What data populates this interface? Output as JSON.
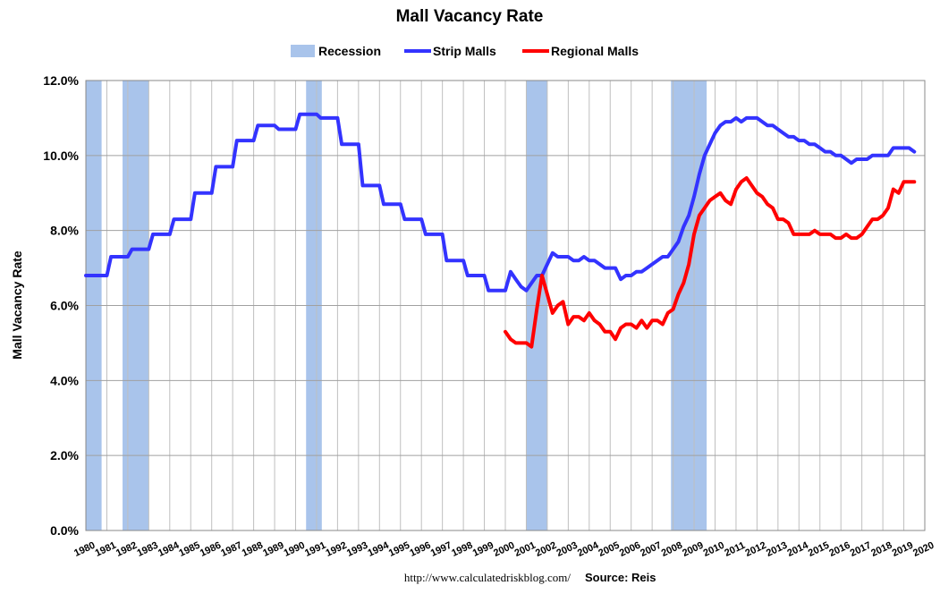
{
  "chart_data": {
    "type": "line",
    "title": "Mall Vacancy Rate",
    "ylabel": "Mall Vacancy Rate",
    "xlabel": "",
    "ylim": [
      0,
      12
    ],
    "yticks": [
      "0.0%",
      "2.0%",
      "4.0%",
      "6.0%",
      "8.0%",
      "10.0%",
      "12.0%"
    ],
    "xlim": [
      1980,
      2020
    ],
    "xticks": [
      "1980",
      "1981",
      "1982",
      "1983",
      "1984",
      "1985",
      "1986",
      "1987",
      "1988",
      "1989",
      "1990",
      "1991",
      "1992",
      "1993",
      "1994",
      "1995",
      "1996",
      "1997",
      "1998",
      "1999",
      "2000",
      "2001",
      "2002",
      "2003",
      "2004",
      "2005",
      "2006",
      "2007",
      "2008",
      "2009",
      "2010",
      "2011",
      "2012",
      "2013",
      "2014",
      "2015",
      "2016",
      "2017",
      "2018",
      "2019",
      "2020"
    ],
    "grid": "horizontal and vertical",
    "legend_position": "top-center",
    "recession": {
      "name": "Recession",
      "color": "#a9c4eb",
      "periods": [
        [
          1980.0,
          1980.75
        ],
        [
          1981.75,
          1983.0
        ],
        [
          1990.5,
          1991.25
        ],
        [
          2001.0,
          2002.0
        ],
        [
          2007.9,
          2009.6
        ]
      ]
    },
    "series": [
      {
        "name": "Strip Malls",
        "color": "#3333ff",
        "points": [
          [
            1980.0,
            6.8
          ],
          [
            1981.0,
            6.8
          ],
          [
            1981.2,
            7.3
          ],
          [
            1982.0,
            7.3
          ],
          [
            1982.2,
            7.5
          ],
          [
            1983.0,
            7.5
          ],
          [
            1983.2,
            7.9
          ],
          [
            1984.0,
            7.9
          ],
          [
            1984.2,
            8.3
          ],
          [
            1985.0,
            8.3
          ],
          [
            1985.2,
            9.0
          ],
          [
            1986.0,
            9.0
          ],
          [
            1986.2,
            9.7
          ],
          [
            1987.0,
            9.7
          ],
          [
            1987.2,
            10.4
          ],
          [
            1988.0,
            10.4
          ],
          [
            1988.2,
            10.8
          ],
          [
            1989.0,
            10.8
          ],
          [
            1989.2,
            10.7
          ],
          [
            1990.0,
            10.7
          ],
          [
            1990.2,
            11.1
          ],
          [
            1991.0,
            11.1
          ],
          [
            1991.2,
            11.0
          ],
          [
            1992.0,
            11.0
          ],
          [
            1992.2,
            10.3
          ],
          [
            1993.0,
            10.3
          ],
          [
            1993.2,
            9.2
          ],
          [
            1994.0,
            9.2
          ],
          [
            1994.2,
            8.7
          ],
          [
            1995.0,
            8.7
          ],
          [
            1995.2,
            8.3
          ],
          [
            1996.0,
            8.3
          ],
          [
            1996.2,
            7.9
          ],
          [
            1997.0,
            7.9
          ],
          [
            1997.2,
            7.2
          ],
          [
            1998.0,
            7.2
          ],
          [
            1998.2,
            6.8
          ],
          [
            1999.0,
            6.8
          ],
          [
            1999.2,
            6.4
          ],
          [
            2000.0,
            6.4
          ],
          [
            2000.25,
            6.9
          ],
          [
            2000.5,
            6.7
          ],
          [
            2000.75,
            6.5
          ],
          [
            2001.0,
            6.4
          ],
          [
            2001.25,
            6.6
          ],
          [
            2001.5,
            6.8
          ],
          [
            2001.75,
            6.8
          ],
          [
            2002.0,
            7.1
          ],
          [
            2002.25,
            7.4
          ],
          [
            2002.5,
            7.3
          ],
          [
            2002.75,
            7.3
          ],
          [
            2003.0,
            7.3
          ],
          [
            2003.25,
            7.2
          ],
          [
            2003.5,
            7.2
          ],
          [
            2003.75,
            7.3
          ],
          [
            2004.0,
            7.2
          ],
          [
            2004.25,
            7.2
          ],
          [
            2004.5,
            7.1
          ],
          [
            2004.75,
            7.0
          ],
          [
            2005.0,
            7.0
          ],
          [
            2005.25,
            7.0
          ],
          [
            2005.5,
            6.7
          ],
          [
            2005.75,
            6.8
          ],
          [
            2006.0,
            6.8
          ],
          [
            2006.25,
            6.9
          ],
          [
            2006.5,
            6.9
          ],
          [
            2006.75,
            7.0
          ],
          [
            2007.0,
            7.1
          ],
          [
            2007.25,
            7.2
          ],
          [
            2007.5,
            7.3
          ],
          [
            2007.75,
            7.3
          ],
          [
            2008.0,
            7.5
          ],
          [
            2008.25,
            7.7
          ],
          [
            2008.5,
            8.1
          ],
          [
            2008.75,
            8.4
          ],
          [
            2009.0,
            8.9
          ],
          [
            2009.25,
            9.5
          ],
          [
            2009.5,
            10.0
          ],
          [
            2009.75,
            10.3
          ],
          [
            2010.0,
            10.6
          ],
          [
            2010.25,
            10.8
          ],
          [
            2010.5,
            10.9
          ],
          [
            2010.75,
            10.9
          ],
          [
            2011.0,
            11.0
          ],
          [
            2011.25,
            10.9
          ],
          [
            2011.5,
            11.0
          ],
          [
            2011.75,
            11.0
          ],
          [
            2012.0,
            11.0
          ],
          [
            2012.25,
            10.9
          ],
          [
            2012.5,
            10.8
          ],
          [
            2012.75,
            10.8
          ],
          [
            2013.0,
            10.7
          ],
          [
            2013.25,
            10.6
          ],
          [
            2013.5,
            10.5
          ],
          [
            2013.75,
            10.5
          ],
          [
            2014.0,
            10.4
          ],
          [
            2014.25,
            10.4
          ],
          [
            2014.5,
            10.3
          ],
          [
            2014.75,
            10.3
          ],
          [
            2015.0,
            10.2
          ],
          [
            2015.25,
            10.1
          ],
          [
            2015.5,
            10.1
          ],
          [
            2015.75,
            10.0
          ],
          [
            2016.0,
            10.0
          ],
          [
            2016.25,
            9.9
          ],
          [
            2016.5,
            9.8
          ],
          [
            2016.75,
            9.9
          ],
          [
            2017.0,
            9.9
          ],
          [
            2017.25,
            9.9
          ],
          [
            2017.5,
            10.0
          ],
          [
            2017.75,
            10.0
          ],
          [
            2018.0,
            10.0
          ],
          [
            2018.25,
            10.0
          ],
          [
            2018.5,
            10.2
          ],
          [
            2018.75,
            10.2
          ],
          [
            2019.0,
            10.2
          ],
          [
            2019.25,
            10.2
          ],
          [
            2019.5,
            10.1
          ]
        ]
      },
      {
        "name": "Regional Malls",
        "color": "#ff0000",
        "points": [
          [
            2000.0,
            5.3
          ],
          [
            2000.25,
            5.1
          ],
          [
            2000.5,
            5.0
          ],
          [
            2000.75,
            5.0
          ],
          [
            2001.0,
            5.0
          ],
          [
            2001.25,
            4.9
          ],
          [
            2001.5,
            5.9
          ],
          [
            2001.75,
            6.8
          ],
          [
            2002.0,
            6.3
          ],
          [
            2002.25,
            5.8
          ],
          [
            2002.5,
            6.0
          ],
          [
            2002.75,
            6.1
          ],
          [
            2003.0,
            5.5
          ],
          [
            2003.25,
            5.7
          ],
          [
            2003.5,
            5.7
          ],
          [
            2003.75,
            5.6
          ],
          [
            2004.0,
            5.8
          ],
          [
            2004.25,
            5.6
          ],
          [
            2004.5,
            5.5
          ],
          [
            2004.75,
            5.3
          ],
          [
            2005.0,
            5.3
          ],
          [
            2005.25,
            5.1
          ],
          [
            2005.5,
            5.4
          ],
          [
            2005.75,
            5.5
          ],
          [
            2006.0,
            5.5
          ],
          [
            2006.25,
            5.4
          ],
          [
            2006.5,
            5.6
          ],
          [
            2006.75,
            5.4
          ],
          [
            2007.0,
            5.6
          ],
          [
            2007.25,
            5.6
          ],
          [
            2007.5,
            5.5
          ],
          [
            2007.75,
            5.8
          ],
          [
            2008.0,
            5.9
          ],
          [
            2008.25,
            6.3
          ],
          [
            2008.5,
            6.6
          ],
          [
            2008.75,
            7.1
          ],
          [
            2009.0,
            7.9
          ],
          [
            2009.25,
            8.4
          ],
          [
            2009.5,
            8.6
          ],
          [
            2009.75,
            8.8
          ],
          [
            2010.0,
            8.9
          ],
          [
            2010.25,
            9.0
          ],
          [
            2010.5,
            8.8
          ],
          [
            2010.75,
            8.7
          ],
          [
            2011.0,
            9.1
          ],
          [
            2011.25,
            9.3
          ],
          [
            2011.5,
            9.4
          ],
          [
            2011.75,
            9.2
          ],
          [
            2012.0,
            9.0
          ],
          [
            2012.25,
            8.9
          ],
          [
            2012.5,
            8.7
          ],
          [
            2012.75,
            8.6
          ],
          [
            2013.0,
            8.3
          ],
          [
            2013.25,
            8.3
          ],
          [
            2013.5,
            8.2
          ],
          [
            2013.75,
            7.9
          ],
          [
            2014.0,
            7.9
          ],
          [
            2014.25,
            7.9
          ],
          [
            2014.5,
            7.9
          ],
          [
            2014.75,
            8.0
          ],
          [
            2015.0,
            7.9
          ],
          [
            2015.25,
            7.9
          ],
          [
            2015.5,
            7.9
          ],
          [
            2015.75,
            7.8
          ],
          [
            2016.0,
            7.8
          ],
          [
            2016.25,
            7.9
          ],
          [
            2016.5,
            7.8
          ],
          [
            2016.75,
            7.8
          ],
          [
            2017.0,
            7.9
          ],
          [
            2017.25,
            8.1
          ],
          [
            2017.5,
            8.3
          ],
          [
            2017.75,
            8.3
          ],
          [
            2018.0,
            8.4
          ],
          [
            2018.25,
            8.6
          ],
          [
            2018.5,
            9.1
          ],
          [
            2018.75,
            9.0
          ],
          [
            2019.0,
            9.3
          ],
          [
            2019.25,
            9.3
          ],
          [
            2019.5,
            9.3
          ]
        ]
      }
    ],
    "footer": {
      "url": "http://www.calculatedriskblog.com/",
      "source": "Source: Reis"
    }
  }
}
